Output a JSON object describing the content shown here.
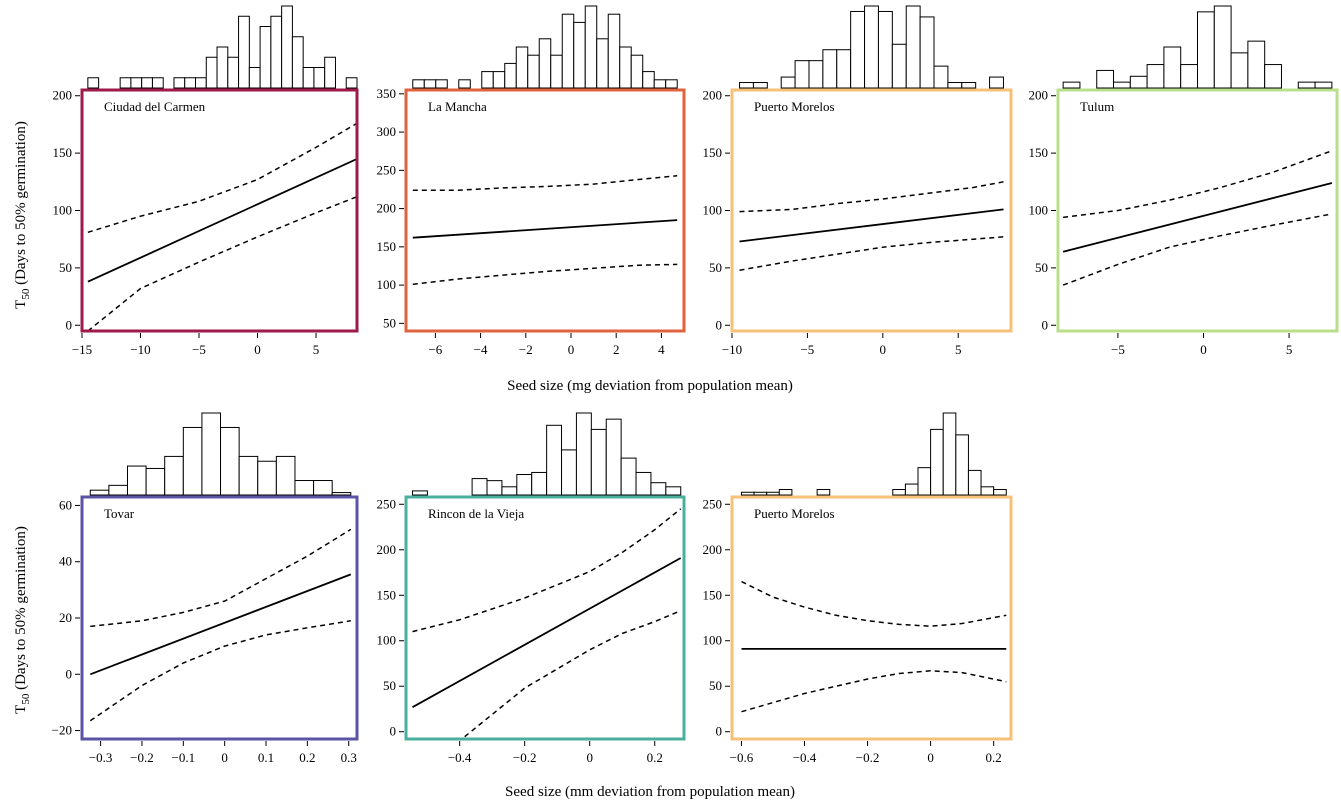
{
  "figure": {
    "row_xlabels": [
      "Seed size (mg deviation from population mean)",
      "Seed size (mm deviation from population mean)"
    ],
    "ylabel_main": "T",
    "ylabel_sub": "50",
    "ylabel_rest": " (Days to 50% germination)"
  },
  "chart_data": [
    {
      "type": "line",
      "title": "Ciudad del Carmen",
      "frame_color": "#9E1A4A",
      "xlim": [
        -15.0,
        8.5
      ],
      "ylim": [
        -5,
        205
      ],
      "xticks": [
        -15,
        -10,
        -5,
        0,
        5
      ],
      "yticks": [
        0,
        50,
        100,
        150,
        200
      ],
      "fit_x": [
        -14.5,
        8.5
      ],
      "fit_y": [
        38,
        145
      ],
      "ci_x": [
        -14.5,
        -10,
        -5,
        0,
        5,
        8.5
      ],
      "ci_upper": [
        81,
        95,
        108,
        127,
        155,
        176
      ],
      "ci_lower": [
        -5,
        32,
        55,
        77,
        98,
        112
      ],
      "hist_counts": [
        1,
        0,
        0,
        1,
        1,
        1,
        1,
        0,
        1,
        1,
        1,
        3,
        4,
        3,
        7,
        2,
        6,
        7,
        8,
        5,
        2,
        2,
        3,
        0,
        1
      ],
      "hist_range": [
        -14.5,
        8.5
      ]
    },
    {
      "type": "line",
      "title": "La Mancha",
      "frame_color": "#E0623E",
      "xlim": [
        -7.3,
        5.0
      ],
      "ylim": [
        40,
        355
      ],
      "xticks": [
        -6,
        -4,
        -2,
        0,
        2,
        4
      ],
      "yticks": [
        50,
        100,
        150,
        200,
        250,
        300,
        350
      ],
      "fit_x": [
        -7.0,
        4.7
      ],
      "fit_y": [
        162,
        185
      ],
      "ci_x": [
        -7.0,
        -5,
        -3,
        -1,
        1,
        3,
        4.7
      ],
      "ci_upper": [
        224,
        224,
        227,
        229,
        232,
        238,
        243
      ],
      "ci_lower": [
        101,
        108,
        113,
        118,
        122,
        126,
        127
      ],
      "hist_counts": [
        1,
        1,
        1,
        0,
        1,
        0,
        2,
        2,
        3,
        5,
        4,
        6,
        4,
        9,
        8,
        10,
        6,
        9,
        5,
        4,
        2,
        1,
        1
      ],
      "hist_range": [
        -7.0,
        4.7
      ]
    },
    {
      "type": "line",
      "title": "Puerto Morelos",
      "frame_color": "#F4C177",
      "xlim": [
        -10.0,
        8.5
      ],
      "ylim": [
        -5,
        205
      ],
      "xticks": [
        -10,
        -5,
        0,
        5
      ],
      "yticks": [
        0,
        50,
        100,
        150,
        200
      ],
      "fit_x": [
        -9.5,
        8.0
      ],
      "fit_y": [
        73,
        101
      ],
      "ci_x": [
        -9.5,
        -6,
        -3,
        0,
        3,
        6,
        8.0
      ],
      "ci_upper": [
        99,
        101,
        106,
        110,
        115,
        120,
        125
      ],
      "ci_lower": [
        48,
        56,
        62,
        68,
        72,
        75,
        77
      ],
      "hist_counts": [
        1,
        1,
        0,
        2,
        5,
        5,
        7,
        7,
        14,
        15,
        14,
        8,
        15,
        13,
        4,
        1,
        1,
        0,
        2
      ],
      "hist_range": [
        -9.5,
        8.0
      ]
    },
    {
      "type": "line",
      "title": "Tulum",
      "frame_color": "#B9DF8B",
      "xlim": [
        -8.5,
        7.8
      ],
      "ylim": [
        -5,
        205
      ],
      "xticks": [
        -5,
        0,
        5
      ],
      "yticks": [
        0,
        50,
        100,
        150,
        200
      ],
      "fit_x": [
        -8.2,
        7.5
      ],
      "fit_y": [
        64,
        124
      ],
      "ci_x": [
        -8.2,
        -5,
        -2,
        1,
        4,
        7.5
      ],
      "ci_upper": [
        94,
        100,
        109,
        120,
        133,
        152
      ],
      "ci_lower": [
        35,
        53,
        68,
        78,
        87,
        97
      ],
      "hist_counts": [
        1,
        0,
        3,
        1,
        2,
        4,
        7,
        4,
        13,
        14,
        6,
        8,
        4,
        0,
        1,
        1
      ],
      "hist_range": [
        -8.2,
        7.5
      ]
    },
    {
      "type": "line",
      "title": "Tovar",
      "frame_color": "#5B53A4",
      "xlim": [
        -0.345,
        0.32
      ],
      "ylim": [
        -23,
        63
      ],
      "xticks": [
        -0.3,
        -0.2,
        -0.1,
        0.0,
        0.1,
        0.2,
        0.3
      ],
      "yticks": [
        -20,
        0,
        20,
        40,
        60
      ],
      "fit_x": [
        -0.325,
        0.305
      ],
      "fit_y": [
        0,
        35.5
      ],
      "ci_x": [
        -0.325,
        -0.2,
        -0.1,
        0.0,
        0.1,
        0.2,
        0.305
      ],
      "ci_upper": [
        17,
        19,
        22,
        26,
        34,
        42,
        51.5
      ],
      "ci_lower": [
        -16.5,
        -4,
        4,
        10,
        14,
        16.5,
        19
      ],
      "hist_counts": [
        1,
        2,
        6,
        5.5,
        8,
        14,
        17,
        14,
        8,
        7,
        8,
        3,
        3,
        0.5
      ],
      "hist_range": [
        -0.325,
        0.305
      ]
    },
    {
      "type": "line",
      "title": "Rincon de la Vieja",
      "frame_color": "#4BAF9E",
      "xlim": [
        -0.565,
        0.29
      ],
      "ylim": [
        -8,
        258
      ],
      "xticks": [
        -0.4,
        -0.2,
        0.0,
        0.2
      ],
      "yticks": [
        0,
        50,
        100,
        150,
        200,
        250
      ],
      "fit_x": [
        -0.545,
        0.28
      ],
      "fit_y": [
        27,
        191
      ],
      "ci_x": [
        -0.545,
        -0.4,
        -0.2,
        0.0,
        0.1,
        0.2,
        0.28
      ],
      "ci_upper": [
        110,
        123,
        147,
        176,
        197,
        222,
        245
      ],
      "ci_lower": [
        -60,
        -10,
        48,
        90,
        108,
        121,
        133
      ],
      "hist_counts": [
        1,
        0,
        0,
        0,
        4,
        3.5,
        2,
        5,
        5.5,
        17,
        11,
        20,
        16,
        18.5,
        9,
        5.5,
        3,
        2
      ],
      "hist_range": [
        -0.545,
        0.28
      ]
    },
    {
      "type": "line",
      "title": "Puerto Morelos",
      "frame_color": "#F4C177",
      "xlim": [
        -0.63,
        0.255
      ],
      "ylim": [
        -8,
        258
      ],
      "xticks": [
        -0.6,
        -0.4,
        -0.2,
        0.0,
        0.2
      ],
      "yticks": [
        0,
        50,
        100,
        150,
        200,
        250
      ],
      "fit_x": [
        -0.6,
        0.24
      ],
      "fit_y": [
        91,
        91
      ],
      "ci_x": [
        -0.6,
        -0.5,
        -0.4,
        -0.3,
        -0.2,
        -0.1,
        0.0,
        0.1,
        0.24
      ],
      "ci_upper": [
        165,
        148,
        137,
        128,
        122,
        118,
        116,
        119,
        128
      ],
      "ci_lower": [
        22,
        32,
        42,
        50,
        58,
        64,
        67,
        65,
        55
      ],
      "hist_counts": [
        0.5,
        0.5,
        0.5,
        1,
        0,
        0,
        1,
        0,
        0,
        0,
        0,
        0,
        1,
        2,
        5,
        12,
        15,
        11,
        4.5,
        1.5,
        1
      ],
      "hist_range": [
        -0.6,
        0.24
      ]
    }
  ]
}
